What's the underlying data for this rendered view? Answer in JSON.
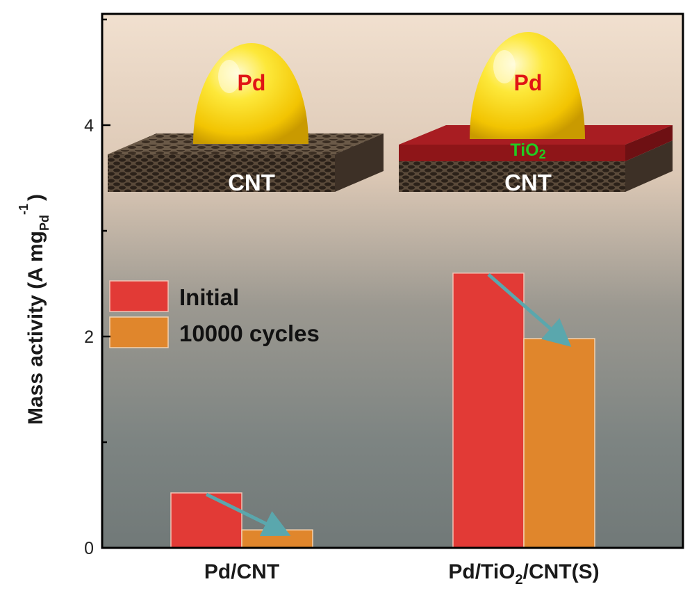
{
  "colors": {
    "initial": "#e23a36",
    "cycles": "#e0862c",
    "arrow": "#5aa7ad",
    "pd_text": "#e01515",
    "tio2_text": "#22cc22",
    "cnt_text": "#ffffff"
  },
  "chart_data": {
    "type": "bar",
    "ylabel": "Mass activity (A mg",
    "ylabel_sub": "Pd",
    "ylabel_sup": "-1",
    "ylabel_close": ")",
    "ylim": [
      0,
      5
    ],
    "yticks": [
      0,
      2,
      4
    ],
    "categories": [
      "Pd/CNT",
      "Pd/TiO2/CNT(S)"
    ],
    "category_labels": [
      {
        "main": "Pd/CNT",
        "sub": "",
        "rest": ""
      },
      {
        "main": "Pd/TiO",
        "sub": "2",
        "rest": "/CNT(S)"
      }
    ],
    "series": [
      {
        "name": "Initial",
        "values": [
          0.52,
          2.6
        ]
      },
      {
        "name": "10000 cycles",
        "values": [
          0.17,
          1.98
        ]
      }
    ],
    "legend_position": "left-middle",
    "grid": false
  },
  "insets": {
    "left": {
      "particle": "Pd",
      "support": "CNT"
    },
    "right": {
      "particle": "Pd",
      "layer": "TiO",
      "layer_sub": "2",
      "support": "CNT"
    }
  }
}
